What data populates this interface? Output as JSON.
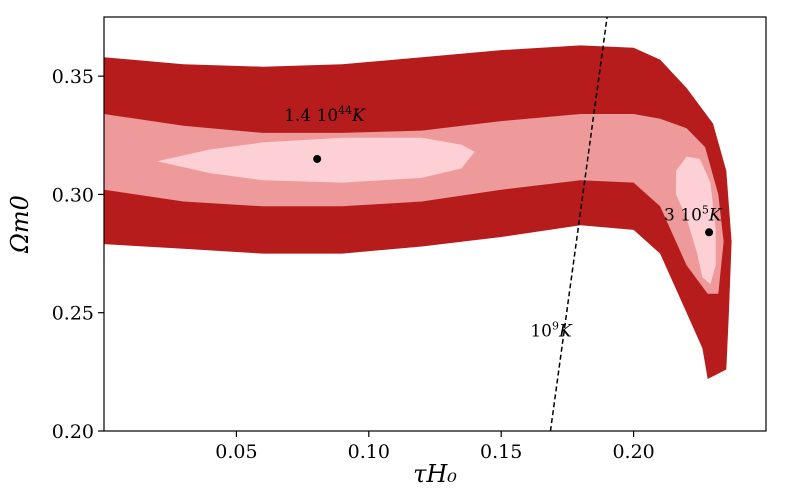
{
  "chart_data": {
    "type": "contour",
    "title": "",
    "xlabel": "τH₀",
    "ylabel": "Ωm0",
    "xlim": [
      0.0,
      0.25
    ],
    "ylim": [
      0.2,
      0.375
    ],
    "xticks": [
      0.05,
      0.1,
      0.15,
      0.2
    ],
    "xtick_labels": [
      "0.05",
      "0.10",
      "0.15",
      "0.20"
    ],
    "yticks": [
      0.2,
      0.25,
      0.3,
      0.35
    ],
    "ytick_labels": [
      "0.20",
      "0.25",
      "0.30",
      "0.35"
    ],
    "grid": false,
    "colors": {
      "outer": "#b71c1c",
      "middle": "#ee9a9a",
      "inner": "#fdd0d5",
      "point": "#000000",
      "line": "#000000"
    },
    "regions": [
      {
        "name": "outer-confidence-region",
        "color_key": "outer",
        "upper": [
          [
            0.0,
            0.358
          ],
          [
            0.03,
            0.355
          ],
          [
            0.06,
            0.354
          ],
          [
            0.09,
            0.355
          ],
          [
            0.12,
            0.358
          ],
          [
            0.15,
            0.361
          ],
          [
            0.18,
            0.363
          ],
          [
            0.2,
            0.362
          ],
          [
            0.21,
            0.357
          ],
          [
            0.22,
            0.345
          ],
          [
            0.23,
            0.33
          ],
          [
            0.235,
            0.31
          ],
          [
            0.237,
            0.28
          ],
          [
            0.236,
            0.25
          ],
          [
            0.235,
            0.226
          ]
        ],
        "lower": [
          [
            0.0,
            0.279
          ],
          [
            0.03,
            0.277
          ],
          [
            0.06,
            0.275
          ],
          [
            0.09,
            0.275
          ],
          [
            0.12,
            0.278
          ],
          [
            0.15,
            0.282
          ],
          [
            0.18,
            0.287
          ],
          [
            0.2,
            0.285
          ],
          [
            0.21,
            0.275
          ],
          [
            0.22,
            0.25
          ],
          [
            0.226,
            0.235
          ],
          [
            0.228,
            0.222
          ]
        ]
      },
      {
        "name": "middle-confidence-region",
        "color_key": "middle",
        "upper": [
          [
            0.0,
            0.334
          ],
          [
            0.03,
            0.329
          ],
          [
            0.06,
            0.326
          ],
          [
            0.09,
            0.326
          ],
          [
            0.12,
            0.327
          ],
          [
            0.15,
            0.331
          ],
          [
            0.18,
            0.334
          ],
          [
            0.2,
            0.334
          ],
          [
            0.21,
            0.332
          ],
          [
            0.22,
            0.328
          ],
          [
            0.227,
            0.32
          ],
          [
            0.232,
            0.3
          ],
          [
            0.234,
            0.28
          ]
        ],
        "lower": [
          [
            0.0,
            0.302
          ],
          [
            0.03,
            0.297
          ],
          [
            0.06,
            0.295
          ],
          [
            0.09,
            0.295
          ],
          [
            0.12,
            0.297
          ],
          [
            0.15,
            0.302
          ],
          [
            0.18,
            0.306
          ],
          [
            0.2,
            0.305
          ],
          [
            0.21,
            0.295
          ],
          [
            0.22,
            0.27
          ],
          [
            0.228,
            0.258
          ],
          [
            0.232,
            0.258
          ],
          [
            0.234,
            0.28
          ]
        ]
      },
      {
        "name": "inner-region-left",
        "color_key": "inner",
        "upper": [
          [
            0.02,
            0.314
          ],
          [
            0.04,
            0.319
          ],
          [
            0.06,
            0.322
          ],
          [
            0.09,
            0.324
          ],
          [
            0.12,
            0.324
          ],
          [
            0.135,
            0.321
          ],
          [
            0.14,
            0.318
          ]
        ],
        "lower": [
          [
            0.02,
            0.314
          ],
          [
            0.04,
            0.309
          ],
          [
            0.06,
            0.306
          ],
          [
            0.09,
            0.305
          ],
          [
            0.12,
            0.307
          ],
          [
            0.135,
            0.311
          ],
          [
            0.14,
            0.318
          ]
        ]
      },
      {
        "name": "inner-region-right",
        "color_key": "inner",
        "upper": [
          [
            0.216,
            0.31
          ],
          [
            0.22,
            0.316
          ],
          [
            0.225,
            0.315
          ],
          [
            0.229,
            0.305
          ],
          [
            0.231,
            0.285
          ],
          [
            0.231,
            0.27
          ],
          [
            0.229,
            0.262
          ]
        ],
        "lower": [
          [
            0.216,
            0.31
          ],
          [
            0.216,
            0.3
          ],
          [
            0.22,
            0.29
          ],
          [
            0.224,
            0.275
          ],
          [
            0.226,
            0.265
          ],
          [
            0.229,
            0.262
          ]
        ]
      }
    ],
    "line": {
      "name": "10^9 K reference line",
      "style": "dashed",
      "points": [
        [
          0.1686,
          0.2
        ],
        [
          0.19,
          0.375
        ]
      ]
    },
    "points": [
      {
        "name": "best-fit-left",
        "x": 0.0805,
        "y": 0.315
      },
      {
        "name": "best-fit-right",
        "x": 0.2285,
        "y": 0.284
      }
    ],
    "annotations": [
      {
        "name": "annotation-left",
        "base": "1.4 10",
        "sup": "44",
        "unit": "K",
        "x": 0.068,
        "y": 0.331
      },
      {
        "name": "annotation-right",
        "base": "3 10",
        "sup": "5",
        "unit": "K",
        "x": 0.2115,
        "y": 0.289
      },
      {
        "name": "annotation-line",
        "base": "10",
        "sup": "9",
        "unit": "K",
        "x": 0.161,
        "y": 0.24
      }
    ]
  }
}
